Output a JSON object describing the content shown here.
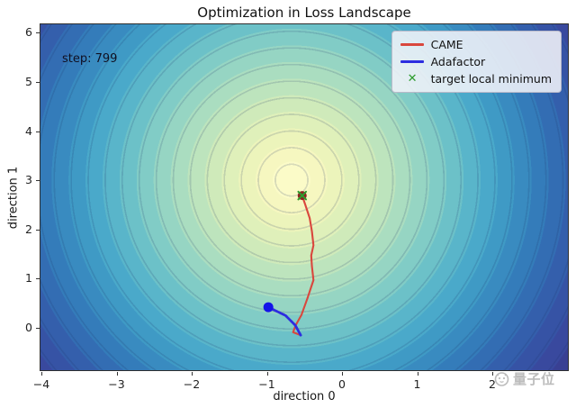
{
  "title": "Optimization in Loss Landscape",
  "annotation": {
    "text": "step: 799"
  },
  "axes": {
    "xlabel": "direction 0",
    "ylabel": "direction 1",
    "x_tick_labels": [
      "−4",
      "−3",
      "−2",
      "−1",
      "0",
      "1",
      "2"
    ],
    "y_tick_labels": [
      "0",
      "1",
      "2",
      "3",
      "4",
      "5",
      "6"
    ]
  },
  "legend": {
    "items": [
      {
        "label": "CAME",
        "marker": "line",
        "color": "#d9473d"
      },
      {
        "label": "Adafactor",
        "marker": "line",
        "color": "#2d2de0"
      },
      {
        "label": "target local minimum",
        "marker": "x",
        "color": "#2d9c2d"
      }
    ]
  },
  "watermark": {
    "text": "量子位"
  },
  "colors": {
    "came_line": "#d9473d",
    "adafactor_line": "#2d2de0",
    "adafactor_point": "#1414e8",
    "target_x": "#2d9c2d",
    "came_endpoint": "#8c2420",
    "colormap_center": "#fbfbc8",
    "colormap_edge": "#363a8c"
  },
  "chart_data": {
    "type": "contour",
    "title": "Optimization in Loss Landscape",
    "xlabel": "direction 0",
    "ylabel": "direction 1",
    "xlim": [
      -4.05,
      3.05
    ],
    "ylim": [
      -0.9,
      6.15
    ],
    "x_ticks": [
      -4,
      -3,
      -2,
      -1,
      0,
      1,
      2
    ],
    "y_ticks": [
      0,
      1,
      2,
      3,
      4,
      5,
      6
    ],
    "colormap": "YlGnBu_r",
    "grid": false,
    "legend_position": "upper right",
    "loss_minimum_center": [
      -0.65,
      3.0
    ],
    "annotation": {
      "text": "step: 799",
      "x": -3.7,
      "y": 5.55
    },
    "series": [
      {
        "name": "CAME",
        "type": "line",
        "color": "#d9473d",
        "points": [
          [
            -0.55,
            -0.15
          ],
          [
            -0.65,
            -0.09
          ],
          [
            -0.62,
            0.04
          ],
          [
            -0.54,
            0.26
          ],
          [
            -0.46,
            0.6
          ],
          [
            -0.38,
            0.97
          ],
          [
            -0.4,
            1.25
          ],
          [
            -0.41,
            1.47
          ],
          [
            -0.38,
            1.68
          ],
          [
            -0.4,
            1.96
          ],
          [
            -0.43,
            2.23
          ],
          [
            -0.49,
            2.51
          ],
          [
            -0.53,
            2.69
          ]
        ],
        "endpoint_marker": {
          "x": -0.53,
          "y": 2.69,
          "shape": "circle",
          "color": "#8c2420"
        }
      },
      {
        "name": "Adafactor",
        "type": "line",
        "color": "#2d2de0",
        "points": [
          [
            -0.55,
            -0.15
          ],
          [
            -0.62,
            0.05
          ],
          [
            -0.75,
            0.25
          ],
          [
            -0.98,
            0.42
          ]
        ],
        "endpoint_marker": {
          "x": -0.98,
          "y": 0.42,
          "shape": "circle",
          "color": "#1414e8"
        }
      },
      {
        "name": "target local minimum",
        "type": "marker",
        "marker": "x",
        "color": "#2d9c2d",
        "points": [
          [
            -0.53,
            2.69
          ]
        ]
      }
    ]
  }
}
